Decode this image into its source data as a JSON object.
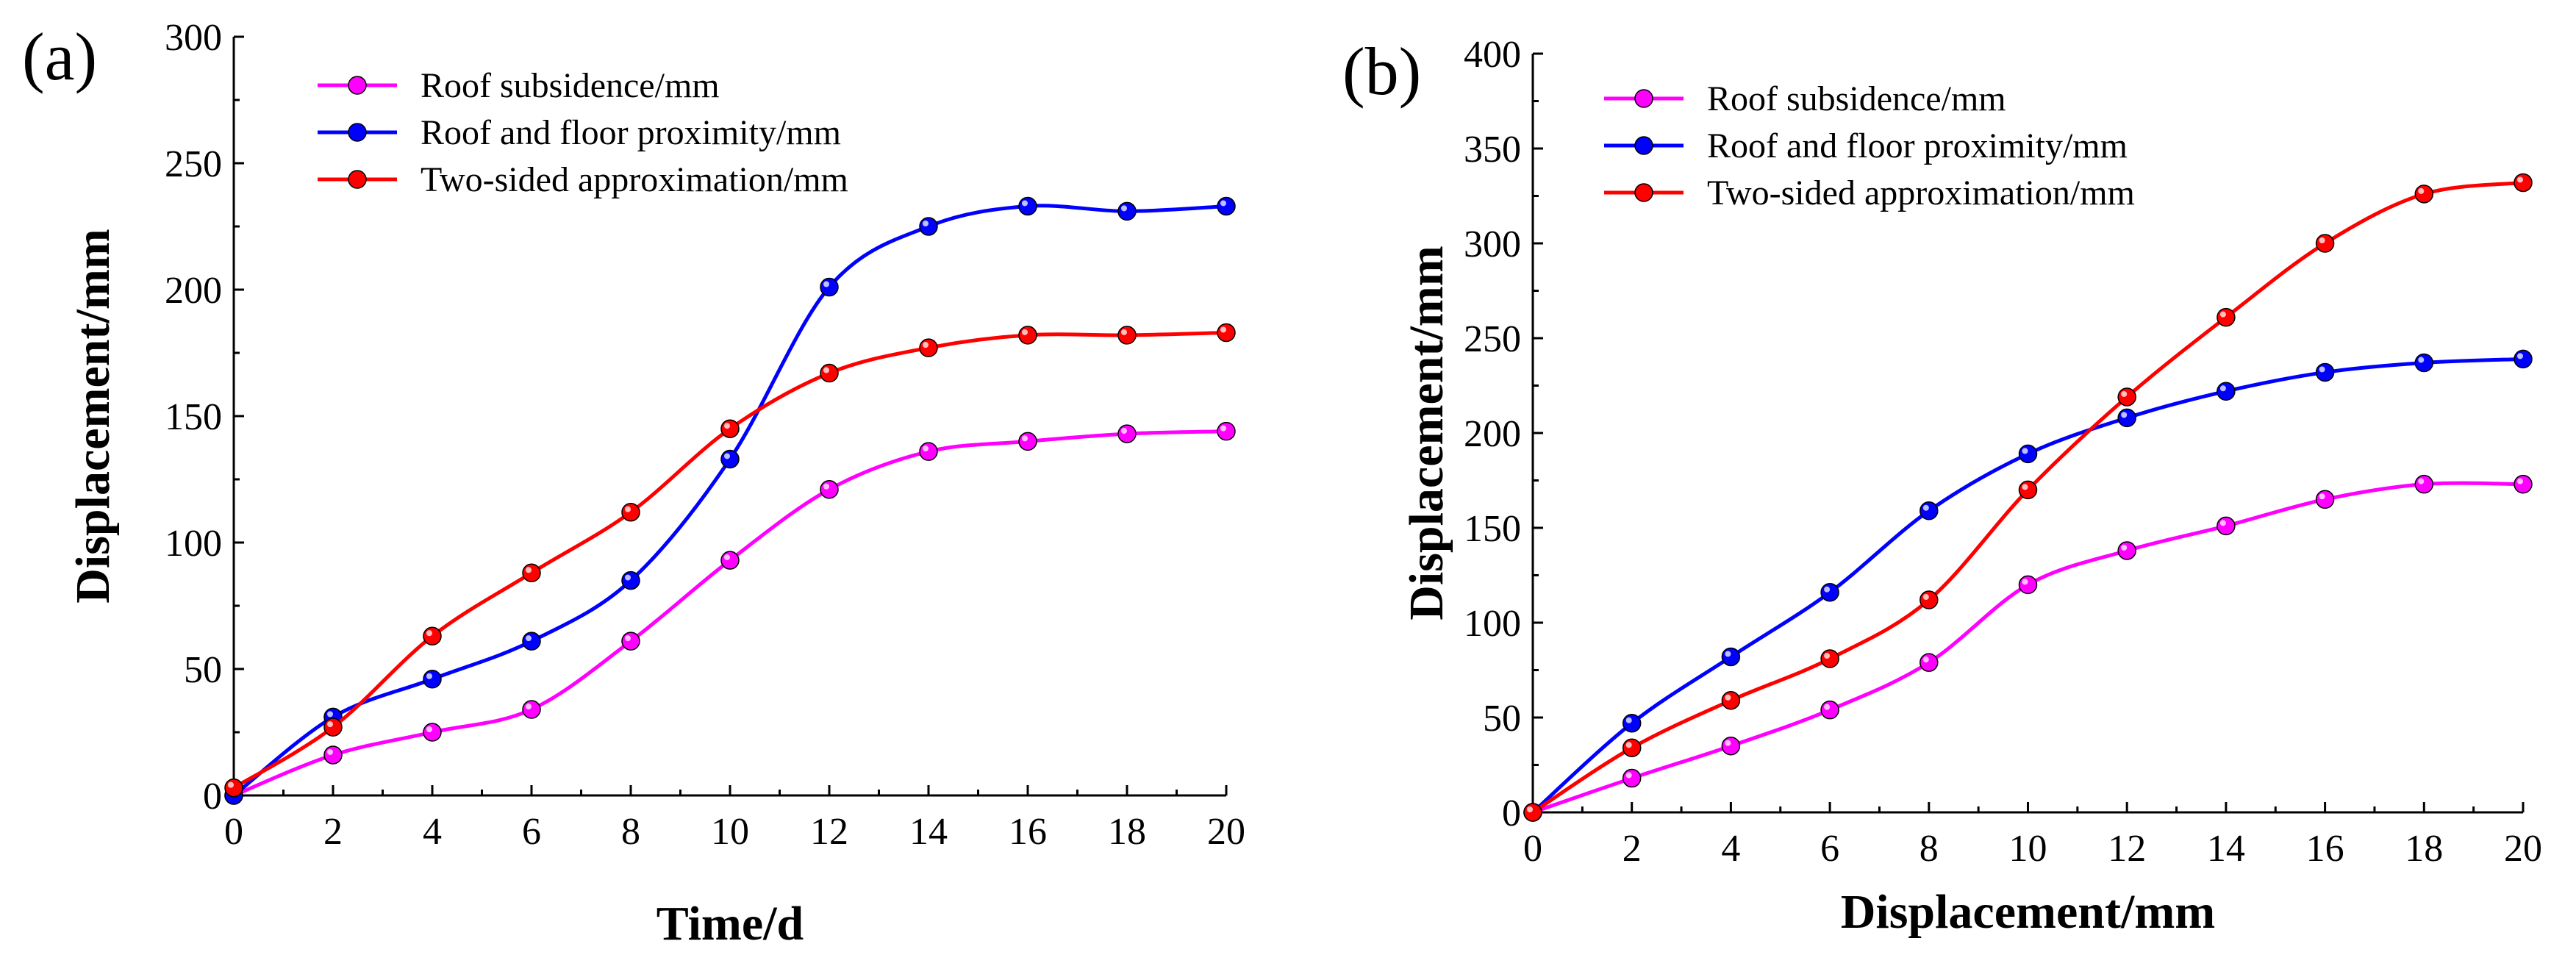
{
  "chart_data": [
    {
      "type": "line",
      "panel_label": "(a)",
      "xlabel": "Time/d",
      "ylabel": "Displacement/mm",
      "x": [
        0,
        2,
        4,
        6,
        8,
        10,
        12,
        14,
        16,
        18,
        20
      ],
      "xlim": [
        0,
        20
      ],
      "ylim": [
        0,
        300
      ],
      "xticks": [
        0,
        2,
        4,
        6,
        8,
        10,
        12,
        14,
        16,
        18,
        20
      ],
      "yticks": [
        0,
        50,
        100,
        150,
        200,
        250,
        300
      ],
      "legend_position": "top-left",
      "grid": false,
      "series": [
        {
          "name": "Roof subsidence/mm",
          "color": "#ff00ff",
          "values": [
            0,
            16,
            25,
            34,
            61,
            93,
            121,
            136,
            140,
            143,
            144
          ]
        },
        {
          "name": "Roof and floor proximity/mm",
          "color": "#0000ff",
          "values": [
            0,
            31,
            46,
            61,
            85,
            133,
            201,
            225,
            233,
            231,
            233
          ]
        },
        {
          "name": "Two-sided approximation/mm",
          "color": "#ff0000",
          "values": [
            3,
            27,
            63,
            88,
            112,
            145,
            167,
            177,
            182,
            182,
            183
          ]
        }
      ]
    },
    {
      "type": "line",
      "panel_label": "(b)",
      "xlabel": "Displacement/mm",
      "ylabel": "Displacement/mm",
      "x": [
        0,
        2,
        4,
        6,
        8,
        10,
        12,
        14,
        16,
        18,
        20
      ],
      "xlim": [
        0,
        20
      ],
      "ylim": [
        0,
        400
      ],
      "xticks": [
        0,
        2,
        4,
        6,
        8,
        10,
        12,
        14,
        16,
        18,
        20
      ],
      "yticks": [
        0,
        50,
        100,
        150,
        200,
        250,
        300,
        350,
        400
      ],
      "legend_position": "top-left",
      "grid": false,
      "series": [
        {
          "name": "Roof subsidence/mm",
          "color": "#ff00ff",
          "values": [
            0,
            18,
            35,
            54,
            79,
            120,
            138,
            151,
            165,
            173,
            173
          ]
        },
        {
          "name": "Roof and floor proximity/mm",
          "color": "#0000ff",
          "values": [
            0,
            47,
            82,
            116,
            159,
            189,
            208,
            222,
            232,
            237,
            239
          ]
        },
        {
          "name": "Two-sided approximation/mm",
          "color": "#ff0000",
          "values": [
            0,
            34,
            59,
            81,
            112,
            170,
            219,
            261,
            300,
            326,
            332
          ]
        }
      ]
    }
  ]
}
